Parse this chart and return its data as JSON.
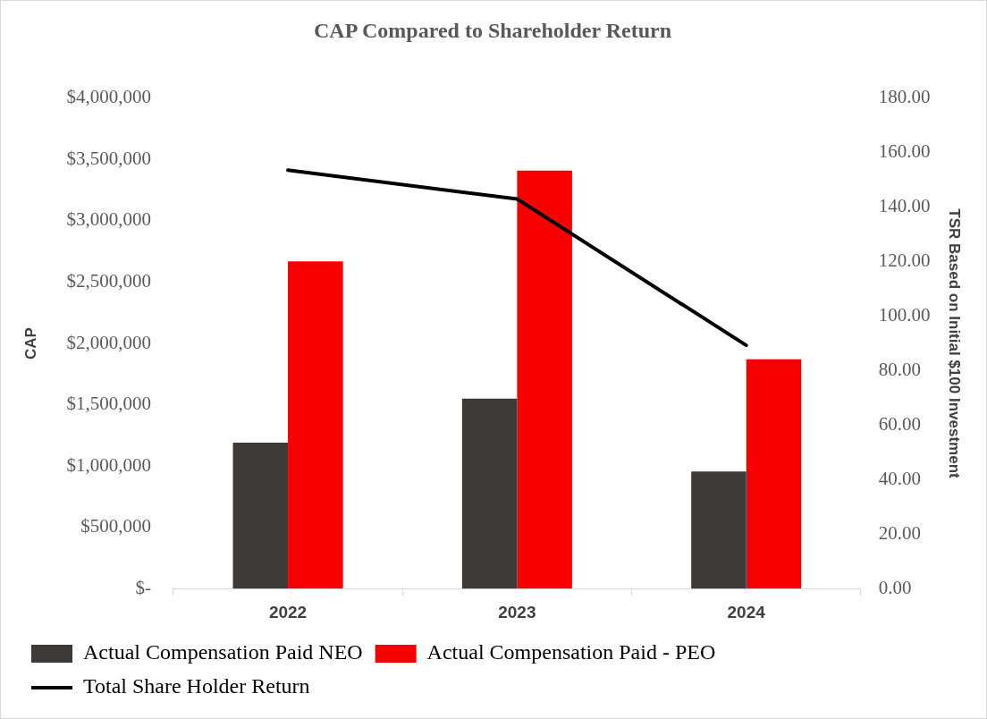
{
  "chart_data": {
    "type": "bar",
    "title": "CAP Compared to Shareholder Return",
    "ylabel": "CAP",
    "y2label": "TSR Based on Initial $100 Investment",
    "categories": [
      "2022",
      "2023",
      "2024"
    ],
    "series": [
      {
        "name": "Actual Compensation Paid NEO",
        "color": "#3d3938",
        "values": [
          1190000,
          1550000,
          955000
        ]
      },
      {
        "name": "Actual Compensation Paid - PEO",
        "color": "#f90000",
        "values": [
          2670000,
          3410000,
          1870000
        ]
      },
      {
        "name": "Total Share Holder Return",
        "type": "line",
        "axis": "y2",
        "color": "#000000",
        "values": [
          153.6,
          143.0,
          89.3
        ],
        "marker": "none",
        "line_style": "solid"
      }
    ],
    "ylim": [
      0,
      4000000
    ],
    "yticks": [
      {
        "value": 0,
        "label": "$-"
      },
      {
        "value": 500000,
        "label": "$500,000"
      },
      {
        "value": 1000000,
        "label": "$1,000,000"
      },
      {
        "value": 1500000,
        "label": "$1,500,000"
      },
      {
        "value": 2000000,
        "label": "$2,000,000"
      },
      {
        "value": 2500000,
        "label": "$2,500,000"
      },
      {
        "value": 3000000,
        "label": "$3,000,000"
      },
      {
        "value": 3500000,
        "label": "$3,500,000"
      },
      {
        "value": 4000000,
        "label": "$4,000,000"
      }
    ],
    "y2lim": [
      0,
      180
    ],
    "y2ticks": [
      {
        "value": 0,
        "label": "0.00"
      },
      {
        "value": 20,
        "label": "20.00"
      },
      {
        "value": 40,
        "label": "40.00"
      },
      {
        "value": 60,
        "label": "60.00"
      },
      {
        "value": 80,
        "label": "80.00"
      },
      {
        "value": 100,
        "label": "100.00"
      },
      {
        "value": 120,
        "label": "120.00"
      },
      {
        "value": 140,
        "label": "140.00"
      },
      {
        "value": 160,
        "label": "160.00"
      },
      {
        "value": 180,
        "label": "180.00"
      }
    ],
    "grid": false,
    "legend": "bottom"
  }
}
